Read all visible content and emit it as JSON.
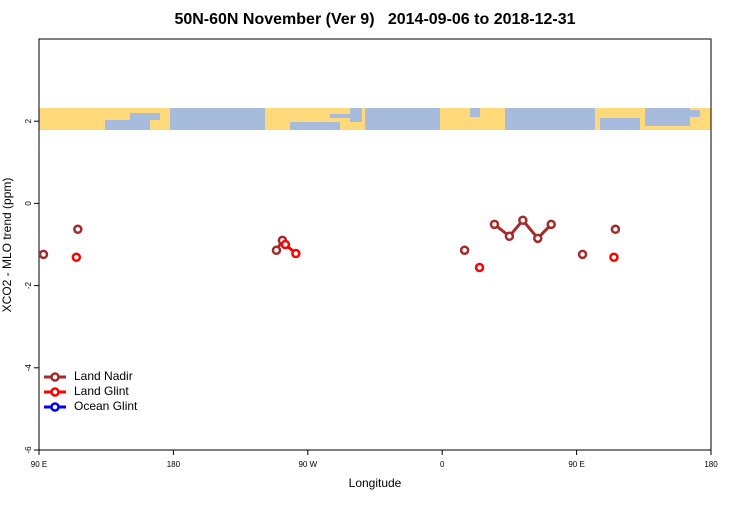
{
  "chart_data": {
    "type": "line",
    "title": "50N-60N November (Ver 9)   2014-09-06 to 2018-12-31",
    "xlabel": "Longitude",
    "ylabel": "XCO2 - MLO trend (ppm)",
    "xlim": [
      90,
      540
    ],
    "xticks": [
      {
        "value": 90,
        "label": "90 E"
      },
      180,
      {
        "value": 270,
        "label": "90 W"
      },
      {
        "value": 360,
        "label": "0"
      },
      {
        "value": 450,
        "label": "90 E"
      },
      {
        "value": 540,
        "label": "180"
      }
    ],
    "ylim": [
      -6,
      4
    ],
    "yticks": [
      -6,
      -4,
      -2,
      0,
      2
    ],
    "legend": "bottom-left",
    "series": [
      {
        "name": "Land Nadir",
        "color": "#a52a2a",
        "x": [
          93,
          null,
          116,
          null,
          249,
          253,
          null,
          375,
          null,
          395,
          405,
          414,
          424,
          433,
          null,
          454,
          null,
          476
        ],
        "values": [
          -1.24,
          null,
          -0.63,
          null,
          -1.14,
          -0.9,
          null,
          -1.14,
          null,
          -0.51,
          -0.8,
          -0.41,
          -0.85,
          -0.51,
          null,
          -1.24,
          null,
          -0.63
        ]
      },
      {
        "name": "Land Glint",
        "color": "#ff0000",
        "x": [
          115,
          null,
          255,
          262,
          null,
          385,
          null,
          475
        ],
        "values": [
          -1.31,
          null,
          -1.0,
          -1.22,
          null,
          -1.56,
          null,
          -1.31
        ]
      },
      {
        "name": "Ocean Glint",
        "color": "#0000ff",
        "x": [],
        "values": []
      }
    ]
  }
}
